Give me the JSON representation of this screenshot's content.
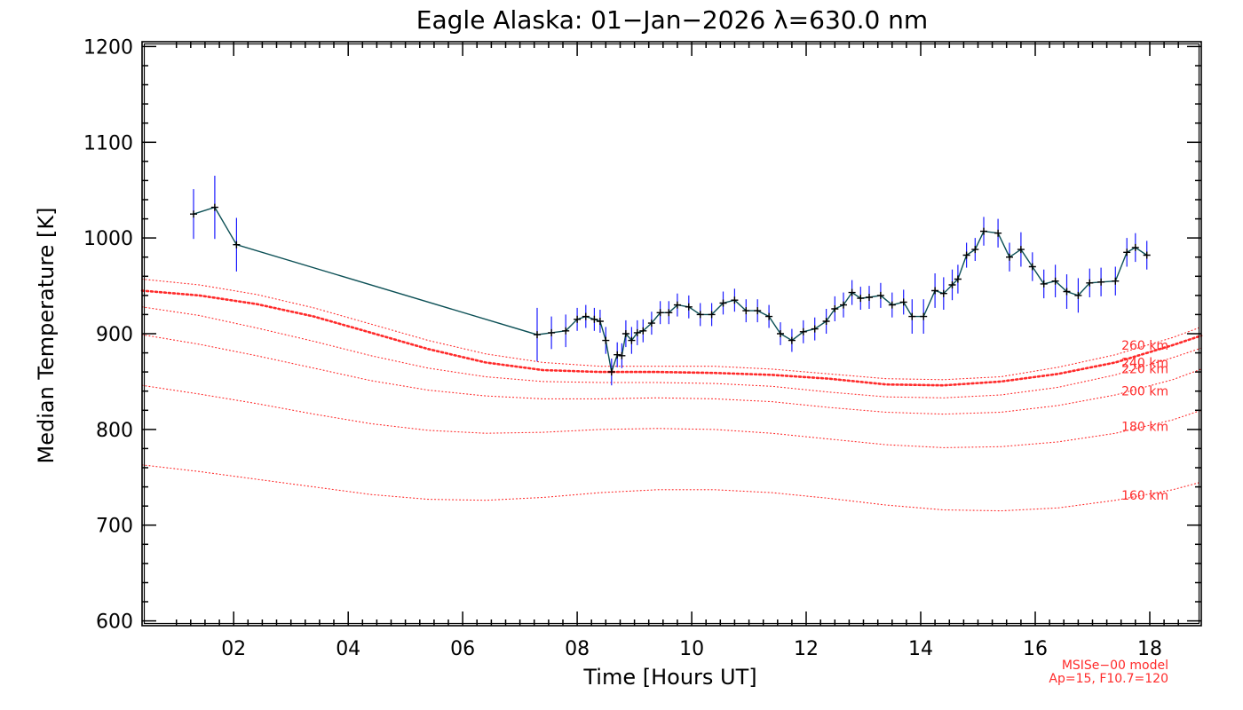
{
  "chart_data": {
    "type": "line",
    "title": "Eagle Alaska: 01−Jan−2026 λ=630.0 nm",
    "xlabel": "Time [Hours UT]",
    "ylabel": "Median Temperature [K]",
    "xlim": [
      0.4,
      18.9
    ],
    "ylim": [
      595,
      1205
    ],
    "x_ticks": [
      2,
      4,
      6,
      8,
      10,
      12,
      14,
      16,
      18
    ],
    "x_tick_labels": [
      "02",
      "04",
      "06",
      "08",
      "10",
      "12",
      "14",
      "16",
      "18"
    ],
    "y_ticks": [
      600,
      700,
      800,
      900,
      1000,
      1100,
      1200
    ],
    "y_tick_labels": [
      "600",
      "700",
      "800",
      "900",
      "1000",
      "1100",
      "1200"
    ],
    "grid": false,
    "colors": {
      "measured_line": "#0b4f55",
      "measured_marker": "#000000",
      "error_bar": "#1a1aff",
      "model": "#ff2a2a"
    },
    "series": [
      {
        "style": "line-with-errorbars",
        "x": [
          1.3,
          1.67,
          2.05,
          7.3,
          7.55,
          7.8,
          8.0,
          8.15,
          8.3,
          8.4,
          8.5,
          8.6,
          8.7,
          8.78,
          8.85,
          8.95,
          9.05,
          9.15,
          9.3,
          9.45,
          9.6,
          9.75,
          9.95,
          10.15,
          10.35,
          10.55,
          10.75,
          10.95,
          11.15,
          11.35,
          11.55,
          11.75,
          11.95,
          12.15,
          12.35,
          12.5,
          12.65,
          12.8,
          12.95,
          13.1,
          13.3,
          13.5,
          13.7,
          13.85,
          14.05,
          14.25,
          14.4,
          14.55,
          14.65,
          14.8,
          14.95,
          15.1,
          15.35,
          15.55,
          15.75,
          15.95,
          16.15,
          16.35,
          16.55,
          16.75,
          16.95,
          17.15,
          17.4,
          17.6,
          17.75,
          17.95
        ],
        "y": [
          1025,
          1032,
          993,
          899,
          901,
          903,
          915,
          918,
          915,
          913,
          893,
          860,
          878,
          877,
          900,
          893,
          901,
          903,
          911,
          922,
          922,
          930,
          928,
          920,
          920,
          932,
          935,
          924,
          924,
          918,
          900,
          893,
          902,
          905,
          913,
          926,
          930,
          943,
          937,
          938,
          940,
          930,
          933,
          918,
          918,
          945,
          942,
          951,
          957,
          982,
          988,
          1007,
          1005,
          980,
          988,
          970,
          952,
          955,
          944,
          940,
          953,
          954,
          955,
          985,
          990,
          982
        ],
        "err": [
          26,
          33,
          28,
          28,
          17,
          17,
          12,
          12,
          12,
          12,
          14,
          14,
          13,
          13,
          14,
          14,
          13,
          12,
          12,
          12,
          12,
          12,
          12,
          12,
          12,
          12,
          12,
          12,
          12,
          12,
          12,
          12,
          12,
          12,
          13,
          13,
          13,
          13,
          12,
          12,
          13,
          13,
          13,
          18,
          18,
          18,
          17,
          16,
          15,
          13,
          12,
          15,
          15,
          15,
          18,
          15,
          15,
          17,
          18,
          18,
          15,
          15,
          15,
          15,
          15,
          15
        ]
      },
      {
        "name": "160 km",
        "style": "model",
        "x": [
          0.4,
          1.4,
          2.4,
          3.4,
          4.4,
          5.4,
          6.4,
          7.4,
          8.4,
          9.4,
          10.4,
          11.4,
          12.4,
          13.4,
          14.4,
          15.4,
          16.4,
          17.4,
          18.4,
          18.9
        ],
        "y": [
          763,
          756,
          748,
          740,
          732,
          727,
          726,
          729,
          734,
          737,
          737,
          734,
          728,
          721,
          716,
          715,
          718,
          726,
          737,
          745
        ]
      },
      {
        "name": "180 km",
        "style": "model",
        "x": [
          0.4,
          1.4,
          2.4,
          3.4,
          4.4,
          5.4,
          6.4,
          7.4,
          8.4,
          9.4,
          10.4,
          11.4,
          12.4,
          13.4,
          14.4,
          15.4,
          16.4,
          17.4,
          18.4,
          18.9
        ],
        "y": [
          846,
          837,
          827,
          816,
          806,
          799,
          796,
          797,
          800,
          801,
          800,
          796,
          790,
          784,
          781,
          782,
          787,
          796,
          810,
          820
        ]
      },
      {
        "name": "200 km",
        "style": "model",
        "x": [
          0.4,
          1.4,
          2.4,
          3.4,
          4.4,
          5.4,
          6.4,
          7.4,
          8.4,
          9.4,
          10.4,
          11.4,
          12.4,
          13.4,
          14.4,
          15.4,
          16.4,
          17.4,
          18.4,
          18.9
        ],
        "y": [
          899,
          889,
          877,
          864,
          851,
          841,
          835,
          832,
          832,
          833,
          832,
          829,
          823,
          818,
          816,
          818,
          825,
          836,
          852,
          863
        ]
      },
      {
        "name": "220 km",
        "style": "model",
        "x": [
          0.4,
          1.4,
          2.4,
          3.4,
          4.4,
          5.4,
          6.4,
          7.4,
          8.4,
          9.4,
          10.4,
          11.4,
          12.4,
          13.4,
          14.4,
          15.4,
          16.4,
          17.4,
          18.4,
          18.9
        ],
        "y": [
          928,
          919,
          906,
          892,
          877,
          864,
          855,
          850,
          849,
          849,
          848,
          845,
          839,
          834,
          833,
          836,
          844,
          857,
          875,
          885
        ]
      },
      {
        "name": "240 km",
        "style": "model-bold",
        "x": [
          0.4,
          1.4,
          2.4,
          3.4,
          4.4,
          5.4,
          6.4,
          7.4,
          8.4,
          9.4,
          10.4,
          11.4,
          12.4,
          13.4,
          14.4,
          15.4,
          16.4,
          17.4,
          18.4,
          18.9
        ],
        "y": [
          945,
          940,
          931,
          918,
          901,
          884,
          870,
          862,
          860,
          860,
          859,
          857,
          853,
          847,
          846,
          850,
          858,
          870,
          888,
          898
        ]
      },
      {
        "name": "260 km",
        "style": "model",
        "x": [
          0.4,
          1.4,
          2.4,
          3.4,
          4.4,
          5.4,
          6.4,
          7.4,
          8.4,
          9.4,
          10.4,
          11.4,
          12.4,
          13.4,
          14.4,
          15.4,
          16.4,
          17.4,
          18.4,
          18.9
        ],
        "y": [
          957,
          951,
          941,
          927,
          910,
          893,
          879,
          870,
          866,
          866,
          866,
          863,
          858,
          853,
          852,
          855,
          865,
          878,
          896,
          907
        ]
      }
    ],
    "model_annotation": [
      "MSISe−00 model",
      "Ap=15, F10.7=120"
    ]
  }
}
